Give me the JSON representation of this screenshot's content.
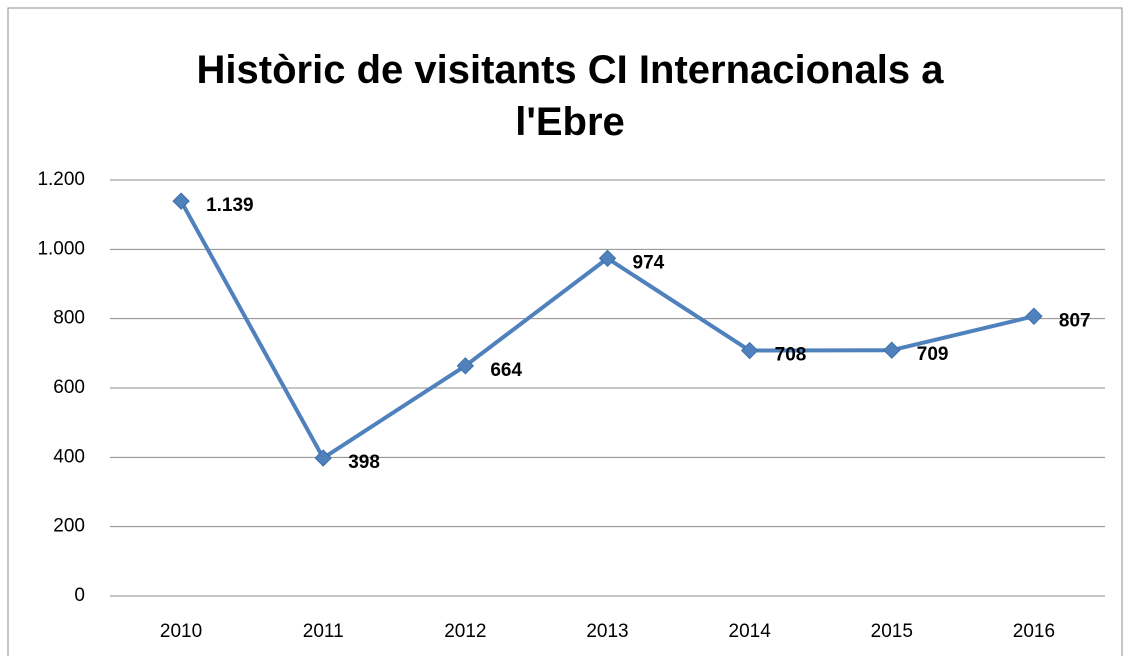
{
  "chart_data": {
    "type": "line",
    "title": "Històric de visitants CI Internacionals a l'Ebre",
    "categories": [
      "2010",
      "2011",
      "2012",
      "2013",
      "2014",
      "2015",
      "2016"
    ],
    "values": [
      1139,
      398,
      664,
      974,
      708,
      709,
      807
    ],
    "value_labels": [
      "1.139",
      "398",
      "664",
      "974",
      "708",
      "709",
      "807"
    ],
    "color": "#4f81bd",
    "ylim": [
      0,
      1200
    ],
    "yticks": [
      0,
      200,
      400,
      600,
      800,
      {
        "value": 1000,
        "label": "1.000"
      },
      {
        "value": 1200,
        "label": "1.200"
      }
    ],
    "grid": true
  }
}
